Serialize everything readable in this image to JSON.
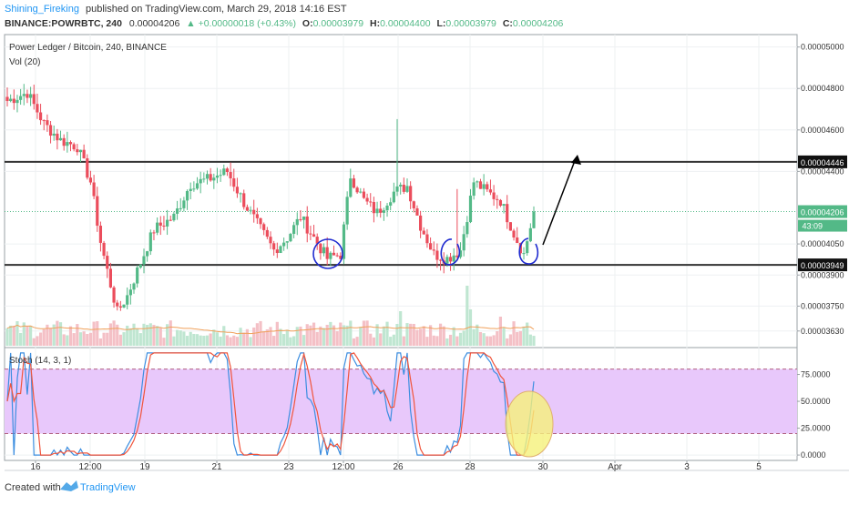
{
  "header": {
    "author": "Shining_Fireking",
    "published": "published on TradingView.com, March 29, 2018 14:16 EST",
    "symbol_line": "BINANCE:POWRBTC, 240",
    "last": "0.00004206",
    "change": "▲ +0.00000018 (+0.43%)",
    "o_label": "O:",
    "o_value": "0.00003979",
    "h_label": "H:",
    "h_value": "0.00004400",
    "l_label": "L:",
    "l_value": "0.00003979",
    "c_label": "C:",
    "c_value": "0.00004206"
  },
  "legend": {
    "pair_title": "Power Ledger / Bitcoin, 240, BINANCE",
    "volume": "Vol (20)",
    "stoch": "Stoch (14, 3, 1)"
  },
  "footer": {
    "created_with": "Created with",
    "brand": "TradingView"
  },
  "colors": {
    "up": "#53b987",
    "down": "#eb4d5c",
    "vol_up": "#bfe6d1",
    "vol_down": "#f4c0c6",
    "vol_ma": "#f0a05a",
    "stoch_k": "#3c8ee0",
    "stoch_d": "#f0553c",
    "stoch_band": "#e8c8fb",
    "hline": "#333333",
    "circle": "#1f2bd0",
    "highlight_fill": "#f5f17a",
    "highlight_stroke": "#e0b070",
    "price_tag": "#53b987",
    "tag_dark": "#111111"
  },
  "chart_data": [
    {
      "type": "candlestick",
      "name": "price",
      "title": "Power Ledger / Bitcoin, 240, BINANCE",
      "x_ticks": [
        "16",
        "12:00",
        "19",
        "21",
        "23",
        "12:00",
        "26",
        "28",
        "30",
        "Apr",
        "3",
        "5"
      ],
      "y_ticks": [
        "0.00005000",
        "0.00004800",
        "0.00004600",
        "0.00004400",
        "0.00004050",
        "0.00003900",
        "0.00003750",
        "0.00003630"
      ],
      "ylim": [
        3.55e-05,
        5.06e-05
      ],
      "last_price": "0.00004206",
      "countdown": "43:09",
      "horizontal_lines": [
        {
          "value": 4.446e-05,
          "label": "0.00004446"
        },
        {
          "value": 3.949e-05,
          "label": "0.00003949"
        }
      ],
      "grid": true
    },
    {
      "type": "bar",
      "name": "volume",
      "title": "Vol (20)"
    },
    {
      "type": "line",
      "name": "stochastic",
      "title": "Stoch (14, 3, 1)",
      "y_ticks": [
        "75.0000",
        "50.0000",
        "25.0000",
        "0.0000"
      ],
      "ylim": [
        -5,
        100
      ],
      "band": [
        20,
        80
      ],
      "grid": true
    }
  ]
}
